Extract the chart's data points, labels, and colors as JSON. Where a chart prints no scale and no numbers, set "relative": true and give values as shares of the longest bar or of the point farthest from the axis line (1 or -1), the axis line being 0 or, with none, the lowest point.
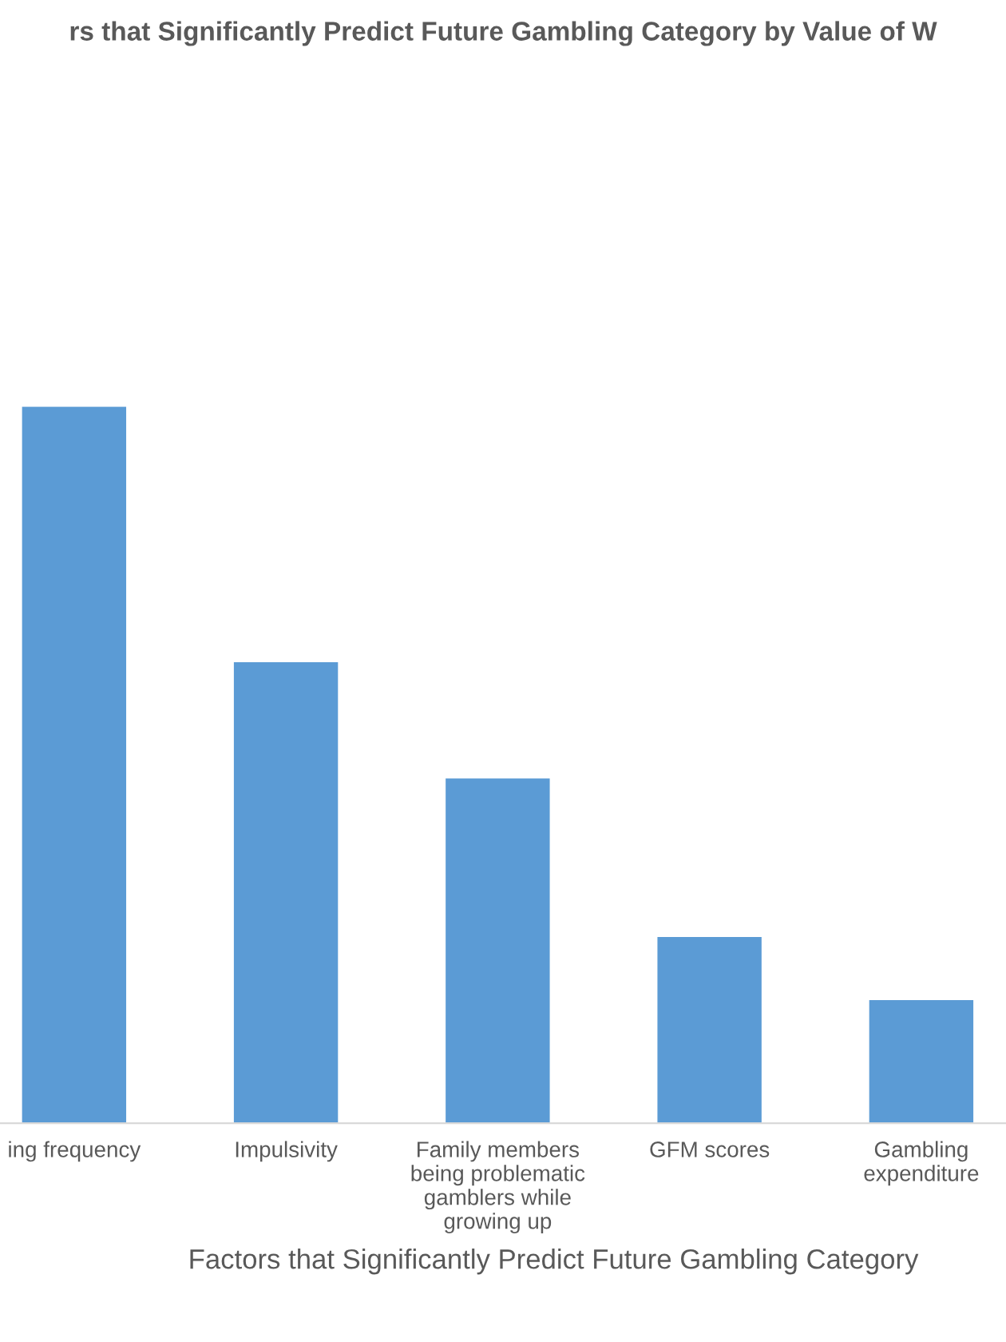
{
  "chart_data": {
    "type": "bar",
    "title": "rs that Significantly Predict Future Gambling Category by Value of W",
    "xlabel": "Factors that Significantly Predict Future Gambling Category",
    "categories": [
      "ing frequency",
      "Impulsivity",
      "Family members\nbeing problematic\ngamblers while\ngrowing up",
      "GFM scores",
      "Gambling\nexpenditure"
    ],
    "values": [
      1,
      0.644,
      0.482,
      0.261,
      0.173
    ],
    "color": "#5b9bd5",
    "relative": true,
    "legend": false
  }
}
